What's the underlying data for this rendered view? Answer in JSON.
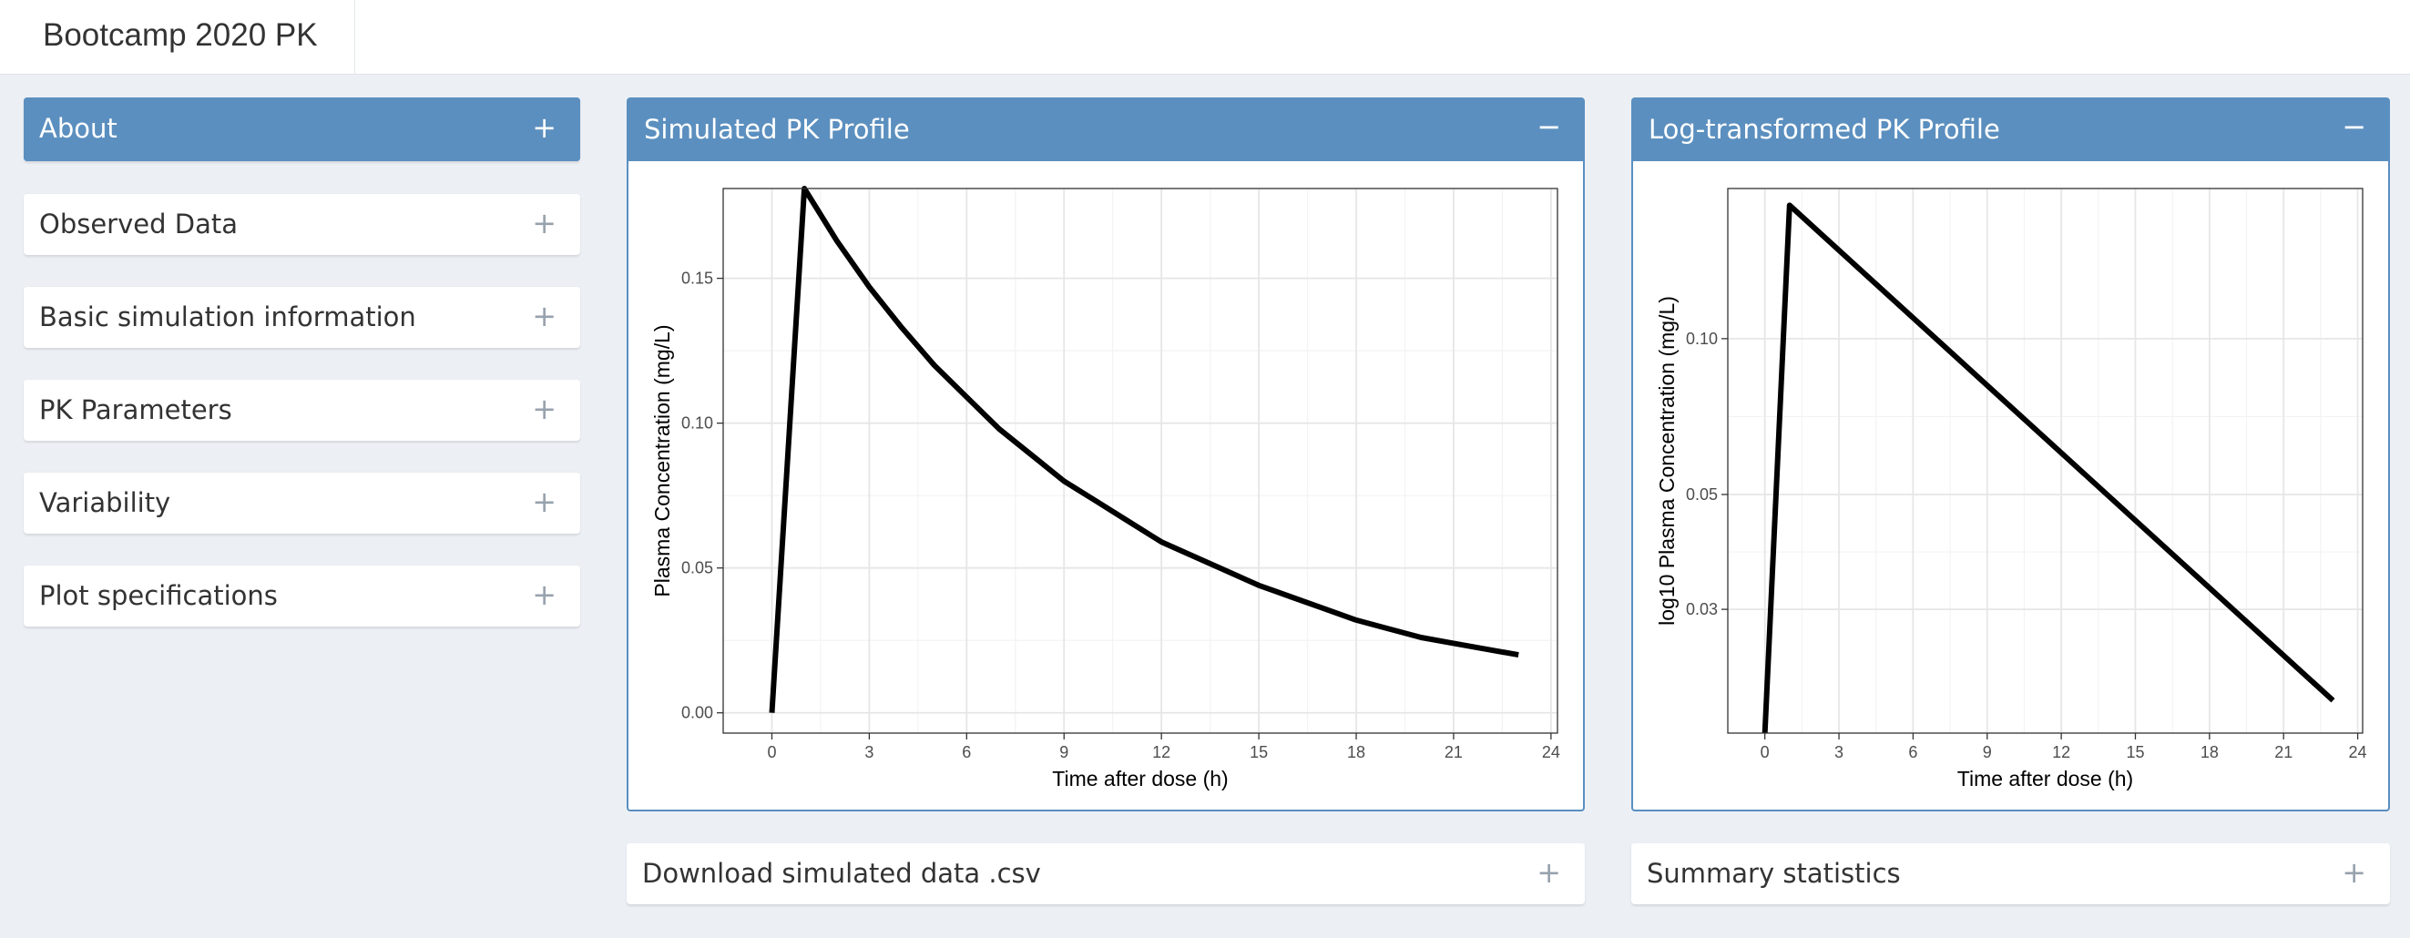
{
  "app": {
    "title": "Bootcamp 2020 PK"
  },
  "sidebar": {
    "boxes": [
      {
        "title": "About",
        "tool": "+"
      },
      {
        "title": "Observed Data",
        "tool": "+"
      },
      {
        "title": "Basic simulation information",
        "tool": "+"
      },
      {
        "title": "PK Parameters",
        "tool": "+"
      },
      {
        "title": "Variability",
        "tool": "+"
      },
      {
        "title": "Plot specifications",
        "tool": "+"
      }
    ]
  },
  "panels": {
    "linear": {
      "title": "Simulated PK Profile",
      "tool": "−"
    },
    "log": {
      "title": "Log-transformed PK Profile",
      "tool": "−"
    },
    "download": {
      "title": "Download simulated data .csv",
      "tool": "+"
    },
    "summary": {
      "title": "Summary statistics",
      "tool": "+"
    }
  },
  "colors": {
    "header": "#5b8fbf",
    "background": "#ecf0f5",
    "line": "#000000",
    "grid": "#ebebeb"
  },
  "icons": {
    "expand": "plus-icon",
    "collapse": "minus-icon"
  },
  "chart_data": [
    {
      "type": "line",
      "xlabel": "Time after dose (h)",
      "ylabel": "Plasma Concentration (mg/L)",
      "xlim": [
        -1.5,
        24.2
      ],
      "ylim": [
        -0.007,
        0.181
      ],
      "xticks": [
        0,
        3,
        6,
        9,
        12,
        15,
        18,
        21,
        24
      ],
      "yticks": [
        0.0,
        0.05,
        0.1,
        0.15
      ],
      "ytick_labels": [
        "0.00",
        "0.05",
        "0.10",
        "0.15"
      ],
      "grid": true,
      "x": [
        0,
        1,
        2,
        3,
        4,
        5,
        6,
        7,
        8,
        9,
        10,
        11,
        12,
        13,
        14,
        15,
        16,
        17,
        18,
        19,
        20,
        21,
        22,
        23
      ],
      "y": [
        0.0,
        0.181,
        0.163,
        0.147,
        0.133,
        0.12,
        0.109,
        0.098,
        0.089,
        0.08,
        0.073,
        0.066,
        0.059,
        0.054,
        0.049,
        0.044,
        0.04,
        0.036,
        0.032,
        0.029,
        0.026,
        0.024,
        0.022,
        0.02
      ]
    },
    {
      "type": "line",
      "xlabel": "Time after dose (h)",
      "ylabel": "log10 Plasma Concentration (mg/L)",
      "xlim": [
        -1.5,
        24.2
      ],
      "ylim": [
        0.0173,
        0.195
      ],
      "y_scale": "log10",
      "xticks": [
        0,
        3,
        6,
        9,
        12,
        15,
        18,
        21,
        24
      ],
      "yticks": [
        0.03,
        0.05,
        0.1
      ],
      "ytick_labels": [
        "0.03",
        "0.05",
        "0.10"
      ],
      "grid": true,
      "x": [
        0,
        1,
        23
      ],
      "y": [
        0.0173,
        0.181,
        0.02
      ]
    }
  ]
}
